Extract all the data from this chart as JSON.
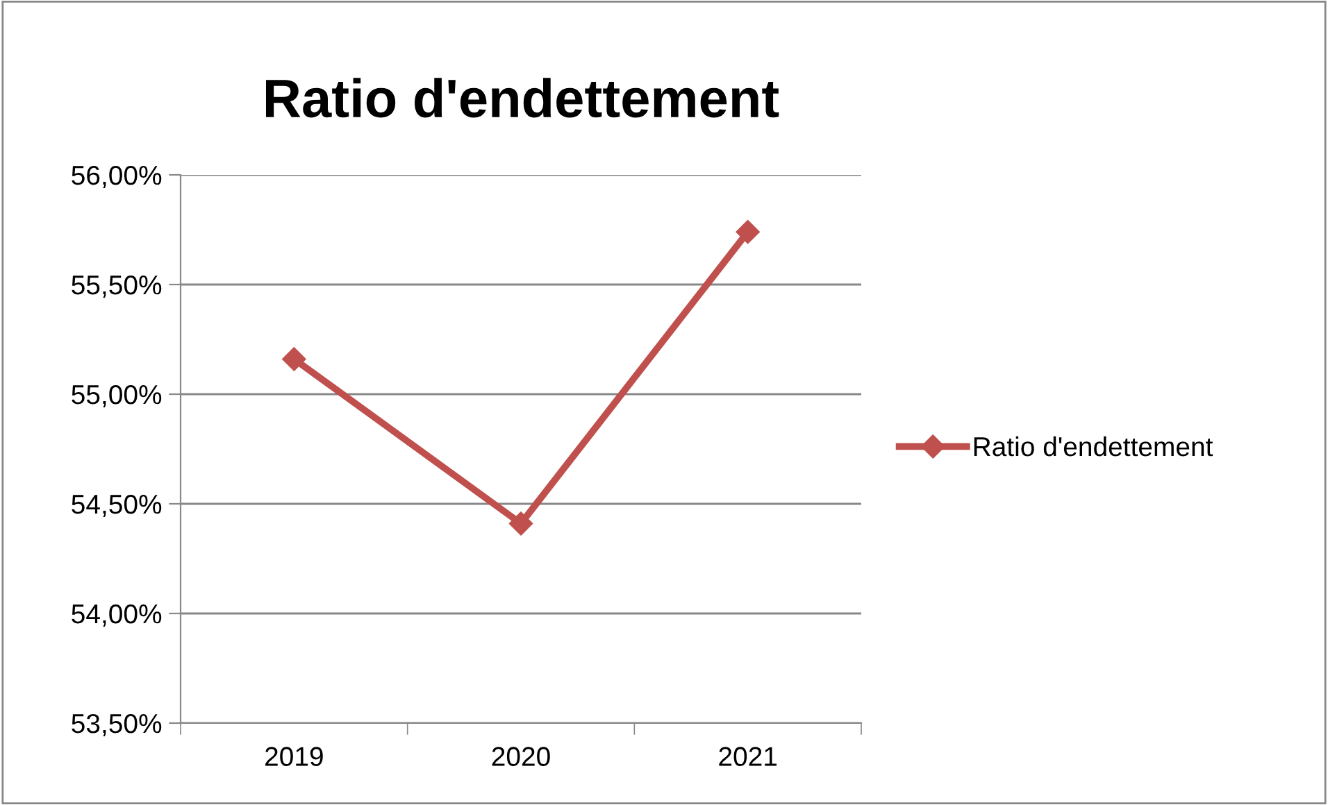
{
  "chart_data": {
    "type": "line",
    "title": "Ratio d'endettement",
    "categories": [
      "2019",
      "2020",
      "2021"
    ],
    "series": [
      {
        "name": "Ratio d'endettement",
        "color": "#c0504d",
        "values": [
          55.16,
          54.41,
          55.74
        ]
      }
    ],
    "ylim": [
      53.5,
      56.0
    ],
    "yticks": [
      {
        "value": 53.5,
        "label": "53,50%"
      },
      {
        "value": 54.0,
        "label": "54,00%"
      },
      {
        "value": 54.5,
        "label": "54,50%"
      },
      {
        "value": 55.0,
        "label": "55,00%"
      },
      {
        "value": 55.5,
        "label": "55,50%"
      },
      {
        "value": 56.0,
        "label": "56,00%"
      }
    ],
    "grid": "y",
    "legend": "right",
    "marker": "diamond",
    "line_style": "solid"
  }
}
